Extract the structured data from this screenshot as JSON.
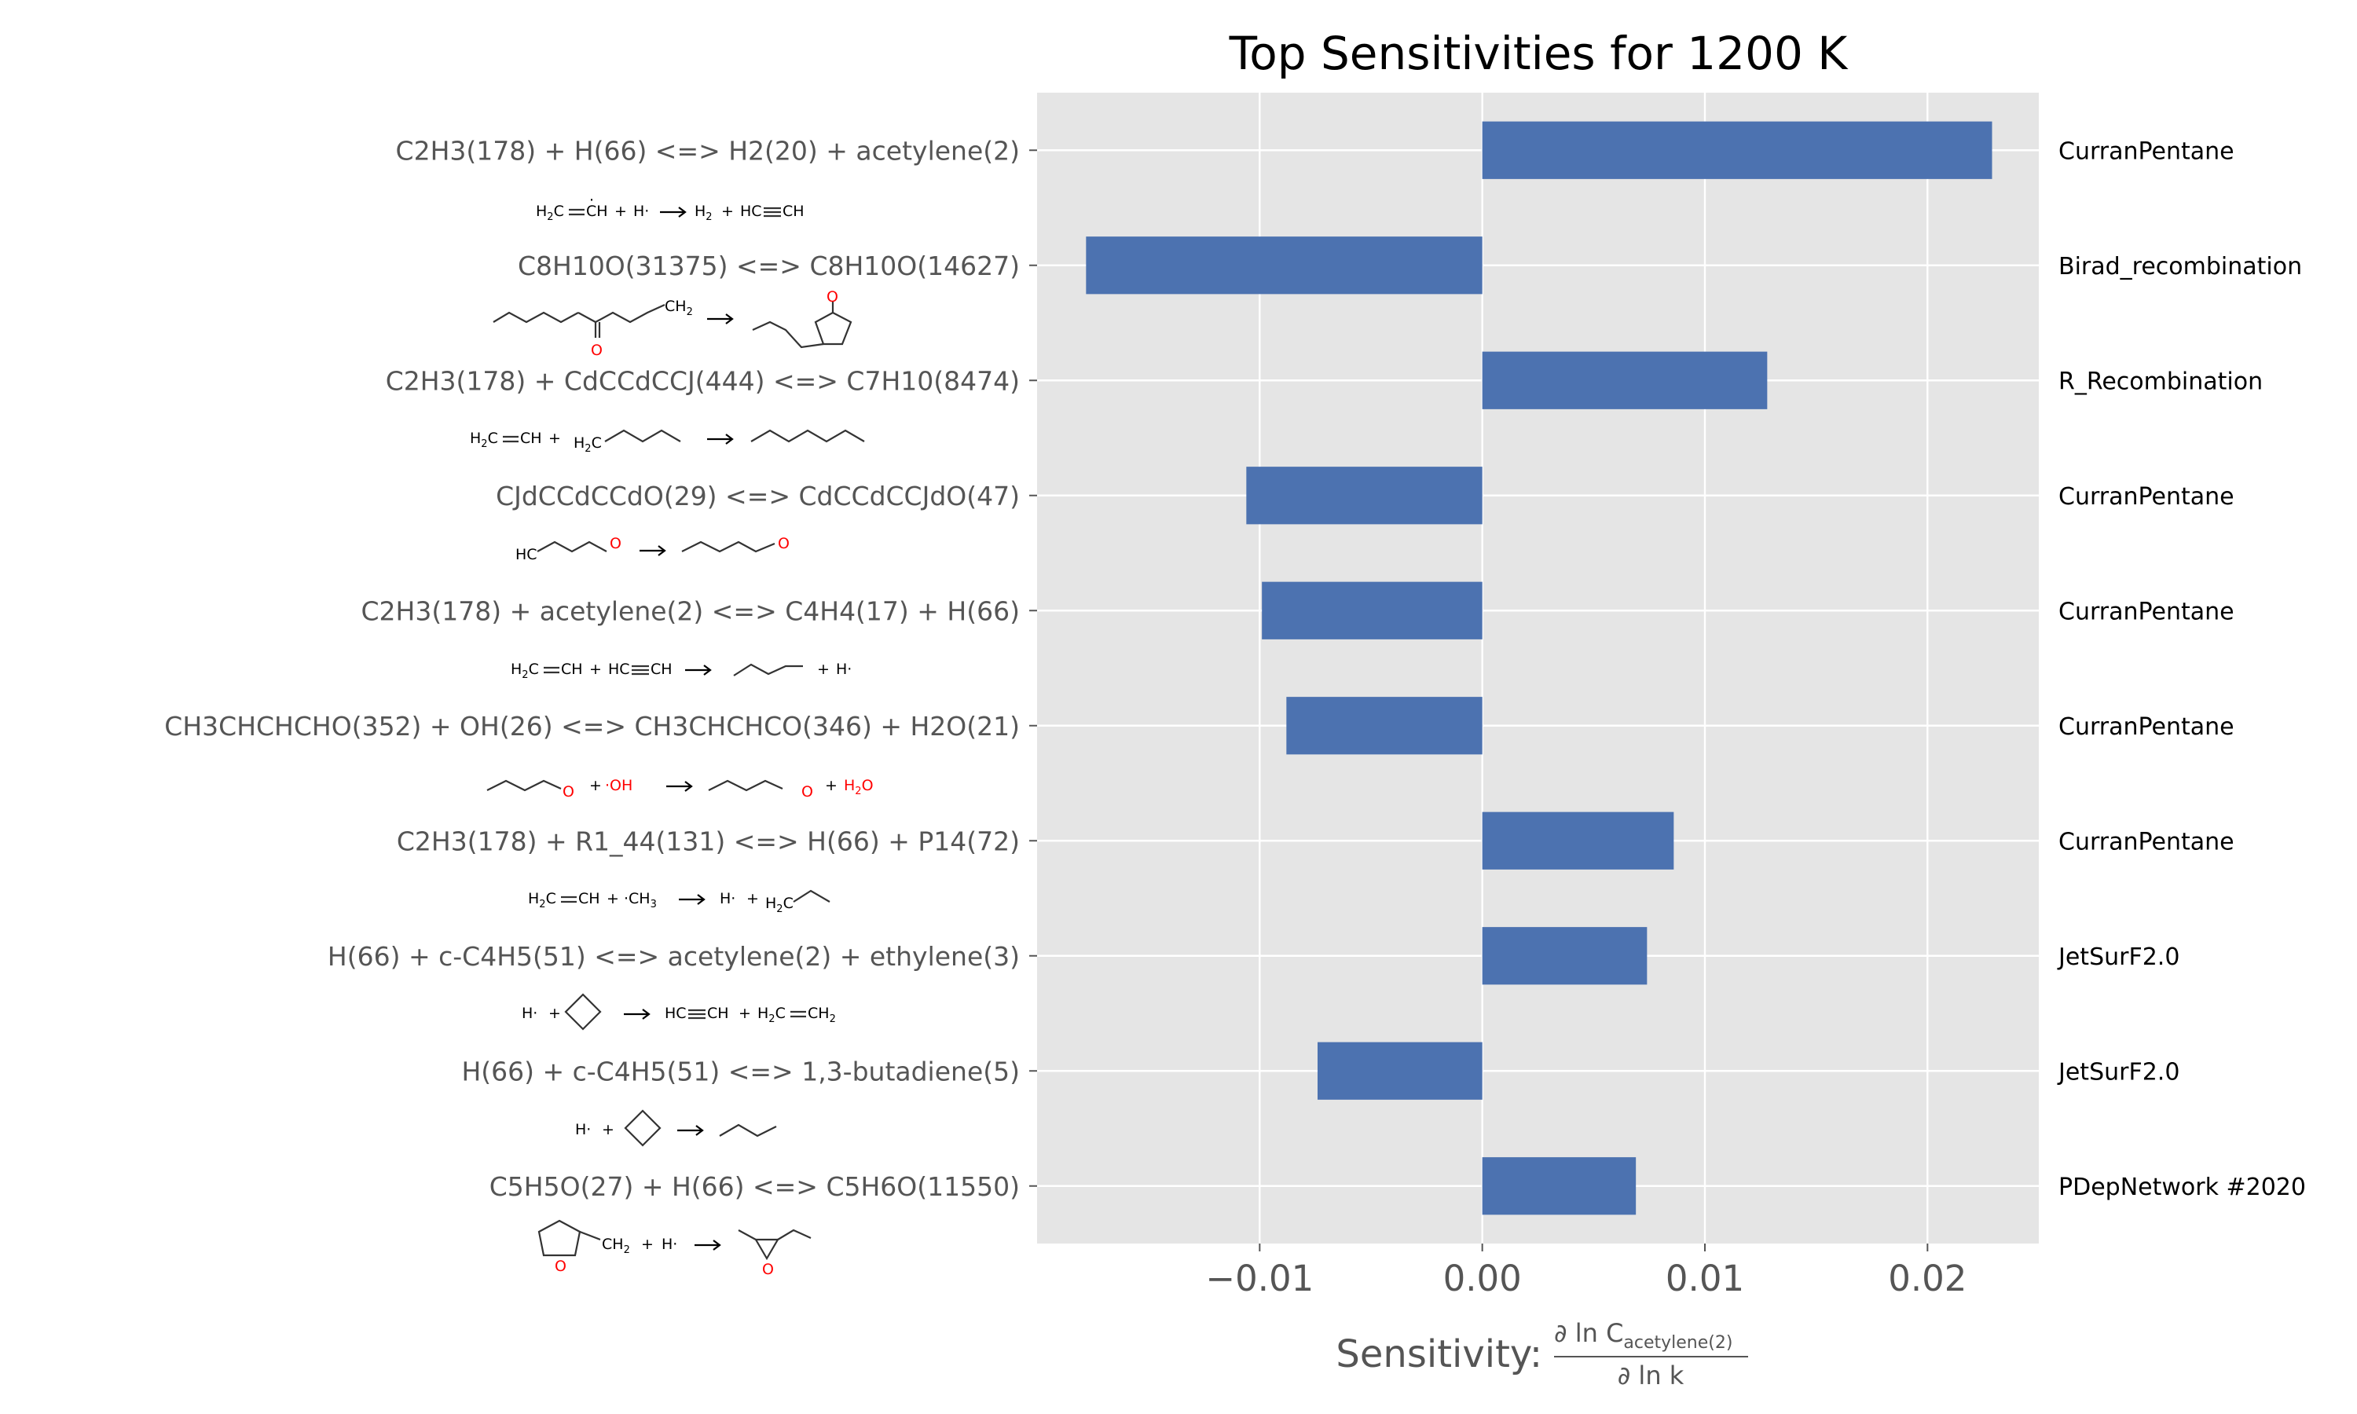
{
  "chart_data": {
    "type": "bar",
    "orientation": "horizontal",
    "title": "Top Sensitivities for 1200 K",
    "xlabel_prefix": "Sensitivity:",
    "xlabel_fraction": {
      "numerator": "∂ ln C",
      "numerator_subscript": "acetylene(2)",
      "denominator": "∂ ln k"
    },
    "xlim": [
      -0.02,
      0.025
    ],
    "xticks": [
      -0.01,
      0.0,
      0.01,
      0.02
    ],
    "xtick_labels": [
      "−0.01",
      "0.00",
      "0.01",
      "0.02"
    ],
    "grid": true,
    "bar_color": "#4c72b0",
    "background_color": "#e5e5e5",
    "categories": [
      "C2H3(178) + H(66) <=> H2(20) + acetylene(2)",
      "C8H10O(31375) <=> C8H10O(14627)",
      "C2H3(178) + CdCCdCCJ(444) <=> C7H10(8474)",
      "CJdCCdCCdO(29) <=> CdCCdCCJdO(47)",
      "C2H3(178) + acetylene(2) <=> C4H4(17) + H(66)",
      "CH3CHCHCHO(352) + OH(26) <=> CH3CHCHCO(346) + H2O(21)",
      "C2H3(178) + R1_44(131) <=> H(66) + P14(72)",
      "H(66) + c-C4H5(51) <=> acetylene(2) + ethylene(3)",
      "H(66) + c-C4H5(51) <=> 1,3-butadiene(5)",
      "C5H5O(27) + H(66) <=> C5H6O(11550)"
    ],
    "values": [
      0.0229,
      -0.0178,
      0.0128,
      -0.0106,
      -0.0099,
      -0.0088,
      0.0086,
      0.0074,
      -0.0074,
      0.0069
    ],
    "families": [
      "CurranPentane",
      "Birad_recombination",
      "R_Recombination",
      "CurranPentane",
      "CurranPentane",
      "CurranPentane",
      "CurranPentane",
      "JetSurF2.0",
      "JetSurF2.0",
      "PDepNetwork #2020"
    ]
  },
  "structures": {
    "r1": {
      "a": "H",
      "b": "C",
      "c": "CH",
      "d": "H·",
      "e": "H",
      "f": "HC",
      "g": "CH"
    },
    "r2": {
      "ch2": "CH",
      "o1": "O",
      "o2": "O"
    },
    "r3": {
      "a": "H",
      "b": "C",
      "c": "CH",
      "d": "H",
      "e": "C"
    },
    "r4": {
      "hc": "HC",
      "o1": "O",
      "o2": "O"
    },
    "r5": {
      "a": "H",
      "b": "C",
      "c": "CH",
      "f": "HC",
      "g": "CH",
      "h": "H·"
    },
    "r6": {
      "o1": "O",
      "oh": "·OH",
      "o2": "O",
      "h2o": "H",
      "h2o_tail": "O"
    },
    "r7": {
      "a": "H",
      "b": "C",
      "c": "CH",
      "ch3": "·CH",
      "h": "H·",
      "h2c": "H",
      "h2c_tail": "C"
    },
    "r8": {
      "h": "H·",
      "f": "HC",
      "g": "CH",
      "h2a": "H",
      "h2b": "C",
      "h2c": "CH"
    },
    "r9": {
      "h": "H·"
    },
    "r10": {
      "ch2": "CH",
      "h": "H·",
      "o1": "O",
      "o2": "O"
    }
  }
}
